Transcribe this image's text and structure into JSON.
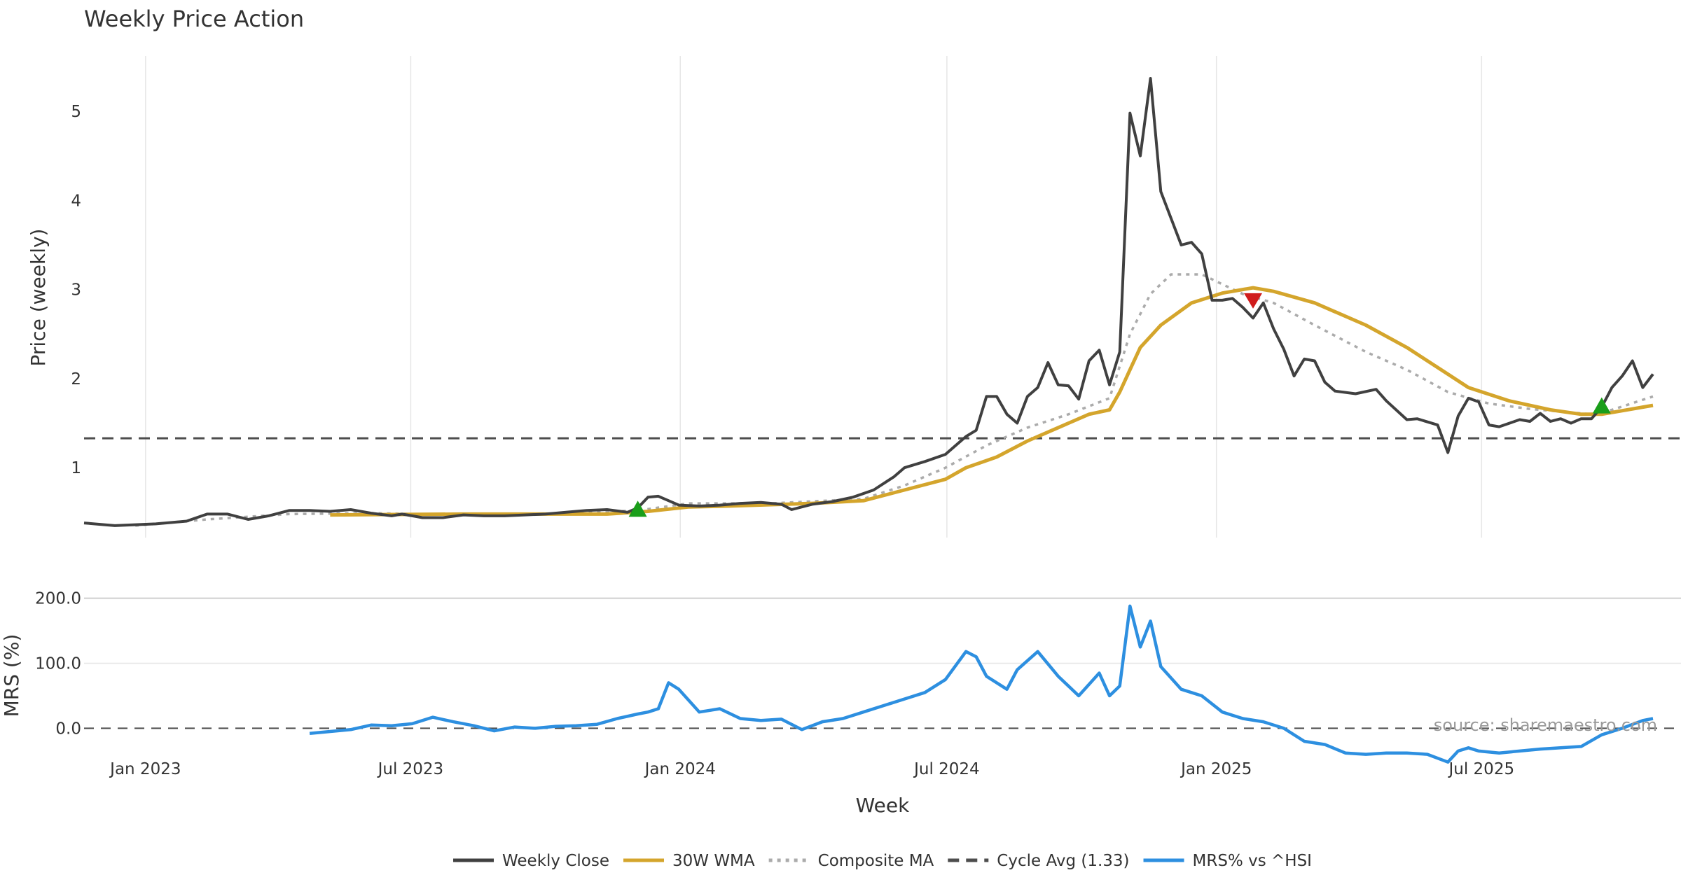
{
  "chart_data": {
    "type": "line",
    "title": "Weekly Price Action",
    "xlabel": "Week",
    "x_ticks": [
      "Jan 2023",
      "Jul 2023",
      "Jan 2024",
      "Jul 2024",
      "Jan 2025",
      "Jul 2025"
    ],
    "x_tick_dates": [
      "2023-01-01",
      "2023-07-01",
      "2024-01-01",
      "2024-07-01",
      "2025-01-01",
      "2025-07-01"
    ],
    "x_range": [
      "2022-11-20",
      "2025-10-26"
    ],
    "source": "source: sharemaestro.com",
    "price_panel": {
      "ylabel": "Price (weekly)",
      "ylim": [
        0.2,
        5.7
      ],
      "y_ticks": [
        1,
        2,
        3,
        4,
        5
      ],
      "grid_x": true,
      "cycle_avg": 1.33,
      "weekly_close": [
        [
          "2022-11-20",
          0.38
        ],
        [
          "2022-12-11",
          0.35
        ],
        [
          "2023-01-08",
          0.37
        ],
        [
          "2023-01-29",
          0.4
        ],
        [
          "2023-02-12",
          0.48
        ],
        [
          "2023-02-26",
          0.48
        ],
        [
          "2023-03-12",
          0.42
        ],
        [
          "2023-03-26",
          0.46
        ],
        [
          "2023-04-09",
          0.52
        ],
        [
          "2023-04-23",
          0.52
        ],
        [
          "2023-05-07",
          0.51
        ],
        [
          "2023-05-21",
          0.53
        ],
        [
          "2023-06-04",
          0.49
        ],
        [
          "2023-06-18",
          0.46
        ],
        [
          "2023-06-25",
          0.48
        ],
        [
          "2023-07-02",
          0.46
        ],
        [
          "2023-07-09",
          0.44
        ],
        [
          "2023-07-23",
          0.44
        ],
        [
          "2023-08-06",
          0.47
        ],
        [
          "2023-08-20",
          0.46
        ],
        [
          "2023-09-03",
          0.46
        ],
        [
          "2023-09-17",
          0.47
        ],
        [
          "2023-10-01",
          0.48
        ],
        [
          "2023-10-15",
          0.5
        ],
        [
          "2023-10-29",
          0.52
        ],
        [
          "2023-11-12",
          0.53
        ],
        [
          "2023-11-26",
          0.5
        ],
        [
          "2023-12-03",
          0.55
        ],
        [
          "2023-12-10",
          0.67
        ],
        [
          "2023-12-17",
          0.68
        ],
        [
          "2023-12-31",
          0.58
        ],
        [
          "2024-01-14",
          0.57
        ],
        [
          "2024-01-28",
          0.58
        ],
        [
          "2024-02-11",
          0.6
        ],
        [
          "2024-02-25",
          0.61
        ],
        [
          "2024-03-10",
          0.59
        ],
        [
          "2024-03-17",
          0.53
        ],
        [
          "2024-03-31",
          0.59
        ],
        [
          "2024-04-14",
          0.62
        ],
        [
          "2024-04-28",
          0.67
        ],
        [
          "2024-05-12",
          0.75
        ],
        [
          "2024-05-26",
          0.9
        ],
        [
          "2024-06-02",
          1.0
        ],
        [
          "2024-06-16",
          1.07
        ],
        [
          "2024-06-30",
          1.15
        ],
        [
          "2024-07-14",
          1.35
        ],
        [
          "2024-07-21",
          1.42
        ],
        [
          "2024-07-28",
          1.8
        ],
        [
          "2024-08-04",
          1.8
        ],
        [
          "2024-08-11",
          1.6
        ],
        [
          "2024-08-18",
          1.5
        ],
        [
          "2024-08-25",
          1.8
        ],
        [
          "2024-09-01",
          1.9
        ],
        [
          "2024-09-08",
          2.18
        ],
        [
          "2024-09-15",
          1.93
        ],
        [
          "2024-09-22",
          1.92
        ],
        [
          "2024-09-29",
          1.77
        ],
        [
          "2024-10-06",
          2.2
        ],
        [
          "2024-10-13",
          2.32
        ],
        [
          "2024-10-20",
          1.93
        ],
        [
          "2024-10-27",
          2.3
        ],
        [
          "2024-11-03",
          4.98
        ],
        [
          "2024-11-10",
          4.5
        ],
        [
          "2024-11-17",
          5.37
        ],
        [
          "2024-11-24",
          4.1
        ],
        [
          "2024-12-01",
          3.8
        ],
        [
          "2024-12-08",
          3.5
        ],
        [
          "2024-12-15",
          3.53
        ],
        [
          "2024-12-22",
          3.4
        ],
        [
          "2024-12-29",
          2.88
        ],
        [
          "2025-01-05",
          2.88
        ],
        [
          "2025-01-12",
          2.9
        ],
        [
          "2025-01-19",
          2.8
        ],
        [
          "2025-01-26",
          2.68
        ],
        [
          "2025-02-02",
          2.85
        ],
        [
          "2025-02-09",
          2.56
        ],
        [
          "2025-02-16",
          2.33
        ],
        [
          "2025-02-23",
          2.03
        ],
        [
          "2025-03-02",
          2.22
        ],
        [
          "2025-03-09",
          2.2
        ],
        [
          "2025-03-16",
          1.96
        ],
        [
          "2025-03-23",
          1.86
        ],
        [
          "2025-04-06",
          1.83
        ],
        [
          "2025-04-20",
          1.88
        ],
        [
          "2025-04-27",
          1.75
        ],
        [
          "2025-05-11",
          1.54
        ],
        [
          "2025-05-18",
          1.55
        ],
        [
          "2025-06-01",
          1.48
        ],
        [
          "2025-06-08",
          1.17
        ],
        [
          "2025-06-15",
          1.58
        ],
        [
          "2025-06-22",
          1.78
        ],
        [
          "2025-06-29",
          1.74
        ],
        [
          "2025-07-06",
          1.48
        ],
        [
          "2025-07-13",
          1.46
        ],
        [
          "2025-07-27",
          1.54
        ],
        [
          "2025-08-03",
          1.52
        ],
        [
          "2025-08-10",
          1.61
        ],
        [
          "2025-08-17",
          1.52
        ],
        [
          "2025-08-24",
          1.55
        ],
        [
          "2025-08-31",
          1.5
        ],
        [
          "2025-09-07",
          1.55
        ],
        [
          "2025-09-14",
          1.55
        ],
        [
          "2025-09-21",
          1.68
        ],
        [
          "2025-09-28",
          1.9
        ],
        [
          "2025-10-05",
          2.03
        ],
        [
          "2025-10-12",
          2.2
        ],
        [
          "2025-10-19",
          1.9
        ],
        [
          "2025-10-26",
          2.05
        ]
      ],
      "wma_30w": [
        [
          "2023-05-07",
          0.47
        ],
        [
          "2023-08-06",
          0.48
        ],
        [
          "2023-11-12",
          0.48
        ],
        [
          "2023-12-10",
          0.51
        ],
        [
          "2024-01-07",
          0.56
        ],
        [
          "2024-02-04",
          0.57
        ],
        [
          "2024-03-31",
          0.6
        ],
        [
          "2024-05-05",
          0.63
        ],
        [
          "2024-06-02",
          0.75
        ],
        [
          "2024-06-30",
          0.87
        ],
        [
          "2024-07-14",
          1.0
        ],
        [
          "2024-08-04",
          1.12
        ],
        [
          "2024-08-25",
          1.3
        ],
        [
          "2024-09-15",
          1.45
        ],
        [
          "2024-10-06",
          1.6
        ],
        [
          "2024-10-20",
          1.65
        ],
        [
          "2024-10-27",
          1.85
        ],
        [
          "2024-11-03",
          2.1
        ],
        [
          "2024-11-10",
          2.35
        ],
        [
          "2024-11-24",
          2.6
        ],
        [
          "2024-12-15",
          2.85
        ],
        [
          "2025-01-05",
          2.96
        ],
        [
          "2025-01-26",
          3.02
        ],
        [
          "2025-02-09",
          2.98
        ],
        [
          "2025-03-09",
          2.85
        ],
        [
          "2025-04-13",
          2.6
        ],
        [
          "2025-05-11",
          2.35
        ],
        [
          "2025-06-08",
          2.05
        ],
        [
          "2025-06-22",
          1.9
        ],
        [
          "2025-07-20",
          1.75
        ],
        [
          "2025-08-17",
          1.65
        ],
        [
          "2025-09-07",
          1.6
        ],
        [
          "2025-09-21",
          1.6
        ],
        [
          "2025-10-19",
          1.68
        ],
        [
          "2025-10-26",
          1.7
        ]
      ],
      "composite_ma": [
        [
          "2022-12-25",
          0.35
        ],
        [
          "2023-02-12",
          0.42
        ],
        [
          "2023-04-09",
          0.48
        ],
        [
          "2023-06-04",
          0.49
        ],
        [
          "2023-08-06",
          0.47
        ],
        [
          "2023-10-01",
          0.48
        ],
        [
          "2023-12-03",
          0.52
        ],
        [
          "2024-01-07",
          0.6
        ],
        [
          "2024-03-03",
          0.6
        ],
        [
          "2024-05-05",
          0.65
        ],
        [
          "2024-06-02",
          0.8
        ],
        [
          "2024-06-30",
          1.0
        ],
        [
          "2024-07-28",
          1.25
        ],
        [
          "2024-08-25",
          1.45
        ],
        [
          "2024-09-22",
          1.6
        ],
        [
          "2024-10-20",
          1.78
        ],
        [
          "2024-11-03",
          2.5
        ],
        [
          "2024-11-17",
          2.95
        ],
        [
          "2024-12-01",
          3.17
        ],
        [
          "2024-12-22",
          3.17
        ],
        [
          "2025-01-19",
          2.95
        ],
        [
          "2025-02-09",
          2.85
        ],
        [
          "2025-03-09",
          2.6
        ],
        [
          "2025-04-13",
          2.3
        ],
        [
          "2025-05-11",
          2.1
        ],
        [
          "2025-06-08",
          1.85
        ],
        [
          "2025-07-06",
          1.72
        ],
        [
          "2025-08-03",
          1.66
        ],
        [
          "2025-09-14",
          1.6
        ],
        [
          "2025-09-28",
          1.65
        ],
        [
          "2025-10-26",
          1.8
        ]
      ],
      "buy_signals": [
        [
          "2023-12-03",
          0.52
        ],
        [
          "2025-09-21",
          1.68
        ]
      ],
      "sell_signals": [
        [
          "2025-01-26",
          2.88
        ]
      ]
    },
    "mrs_panel": {
      "ylabel": "MRS (%)",
      "ylim": [
        -48,
        205
      ],
      "y_ticks": [
        "0.0",
        "100.0",
        "200.0"
      ],
      "y_tick_values": [
        0,
        100,
        200
      ],
      "zero_line": 0,
      "mrs_vs_hsi": [
        [
          "2023-04-23",
          -8
        ],
        [
          "2023-05-21",
          -2
        ],
        [
          "2023-06-04",
          5
        ],
        [
          "2023-06-18",
          4
        ],
        [
          "2023-07-02",
          7
        ],
        [
          "2023-07-16",
          17
        ],
        [
          "2023-07-30",
          10
        ],
        [
          "2023-08-13",
          4
        ],
        [
          "2023-08-27",
          -4
        ],
        [
          "2023-09-10",
          2
        ],
        [
          "2023-09-24",
          0
        ],
        [
          "2023-10-08",
          3
        ],
        [
          "2023-10-22",
          4
        ],
        [
          "2023-11-05",
          6
        ],
        [
          "2023-11-19",
          15
        ],
        [
          "2023-12-03",
          22
        ],
        [
          "2023-12-10",
          25
        ],
        [
          "2023-12-17",
          30
        ],
        [
          "2023-12-24",
          70
        ],
        [
          "2023-12-31",
          60
        ],
        [
          "2024-01-14",
          25
        ],
        [
          "2024-01-28",
          30
        ],
        [
          "2024-02-11",
          15
        ],
        [
          "2024-02-25",
          12
        ],
        [
          "2024-03-10",
          14
        ],
        [
          "2024-03-24",
          -2
        ],
        [
          "2024-04-07",
          10
        ],
        [
          "2024-04-21",
          15
        ],
        [
          "2024-05-05",
          25
        ],
        [
          "2024-05-19",
          35
        ],
        [
          "2024-06-02",
          45
        ],
        [
          "2024-06-16",
          55
        ],
        [
          "2024-06-30",
          75
        ],
        [
          "2024-07-14",
          118
        ],
        [
          "2024-07-21",
          110
        ],
        [
          "2024-07-28",
          80
        ],
        [
          "2024-08-11",
          60
        ],
        [
          "2024-08-18",
          90
        ],
        [
          "2024-09-01",
          118
        ],
        [
          "2024-09-15",
          80
        ],
        [
          "2024-09-29",
          50
        ],
        [
          "2024-10-13",
          85
        ],
        [
          "2024-10-20",
          50
        ],
        [
          "2024-10-27",
          65
        ],
        [
          "2024-11-03",
          188
        ],
        [
          "2024-11-10",
          125
        ],
        [
          "2024-11-17",
          165
        ],
        [
          "2024-11-24",
          95
        ],
        [
          "2024-12-08",
          60
        ],
        [
          "2024-12-22",
          50
        ],
        [
          "2025-01-05",
          25
        ],
        [
          "2025-01-19",
          15
        ],
        [
          "2025-02-02",
          10
        ],
        [
          "2025-02-16",
          0
        ],
        [
          "2025-03-02",
          -20
        ],
        [
          "2025-03-16",
          -25
        ],
        [
          "2025-03-30",
          -38
        ],
        [
          "2025-04-13",
          -40
        ],
        [
          "2025-04-27",
          -38
        ],
        [
          "2025-05-11",
          -38
        ],
        [
          "2025-05-25",
          -40
        ],
        [
          "2025-06-08",
          -52
        ],
        [
          "2025-06-15",
          -35
        ],
        [
          "2025-06-22",
          -30
        ],
        [
          "2025-06-29",
          -35
        ],
        [
          "2025-07-13",
          -38
        ],
        [
          "2025-07-27",
          -35
        ],
        [
          "2025-08-10",
          -32
        ],
        [
          "2025-08-24",
          -30
        ],
        [
          "2025-09-07",
          -28
        ],
        [
          "2025-09-21",
          -10
        ],
        [
          "2025-10-05",
          0
        ],
        [
          "2025-10-19",
          12
        ],
        [
          "2025-10-26",
          15
        ]
      ]
    },
    "legend": {
      "placement": "bottom-center",
      "items": [
        {
          "label": "Weekly Close",
          "color": "#404040",
          "style": "solid"
        },
        {
          "label": "30W WMA",
          "color": "#d4a52c",
          "style": "solid"
        },
        {
          "label": "Composite MA",
          "color": "#ababab",
          "style": "dotted"
        },
        {
          "label": "Cycle Avg (1.33)",
          "color": "#4d4d4d",
          "style": "dashed"
        },
        {
          "label": "MRS% vs ^HSI",
          "color": "#2d8fe0",
          "style": "solid"
        }
      ]
    },
    "colors": {
      "buy_marker": "#1a9e1a",
      "sell_marker": "#d01c1c",
      "grid": "#e6e6e6"
    }
  }
}
